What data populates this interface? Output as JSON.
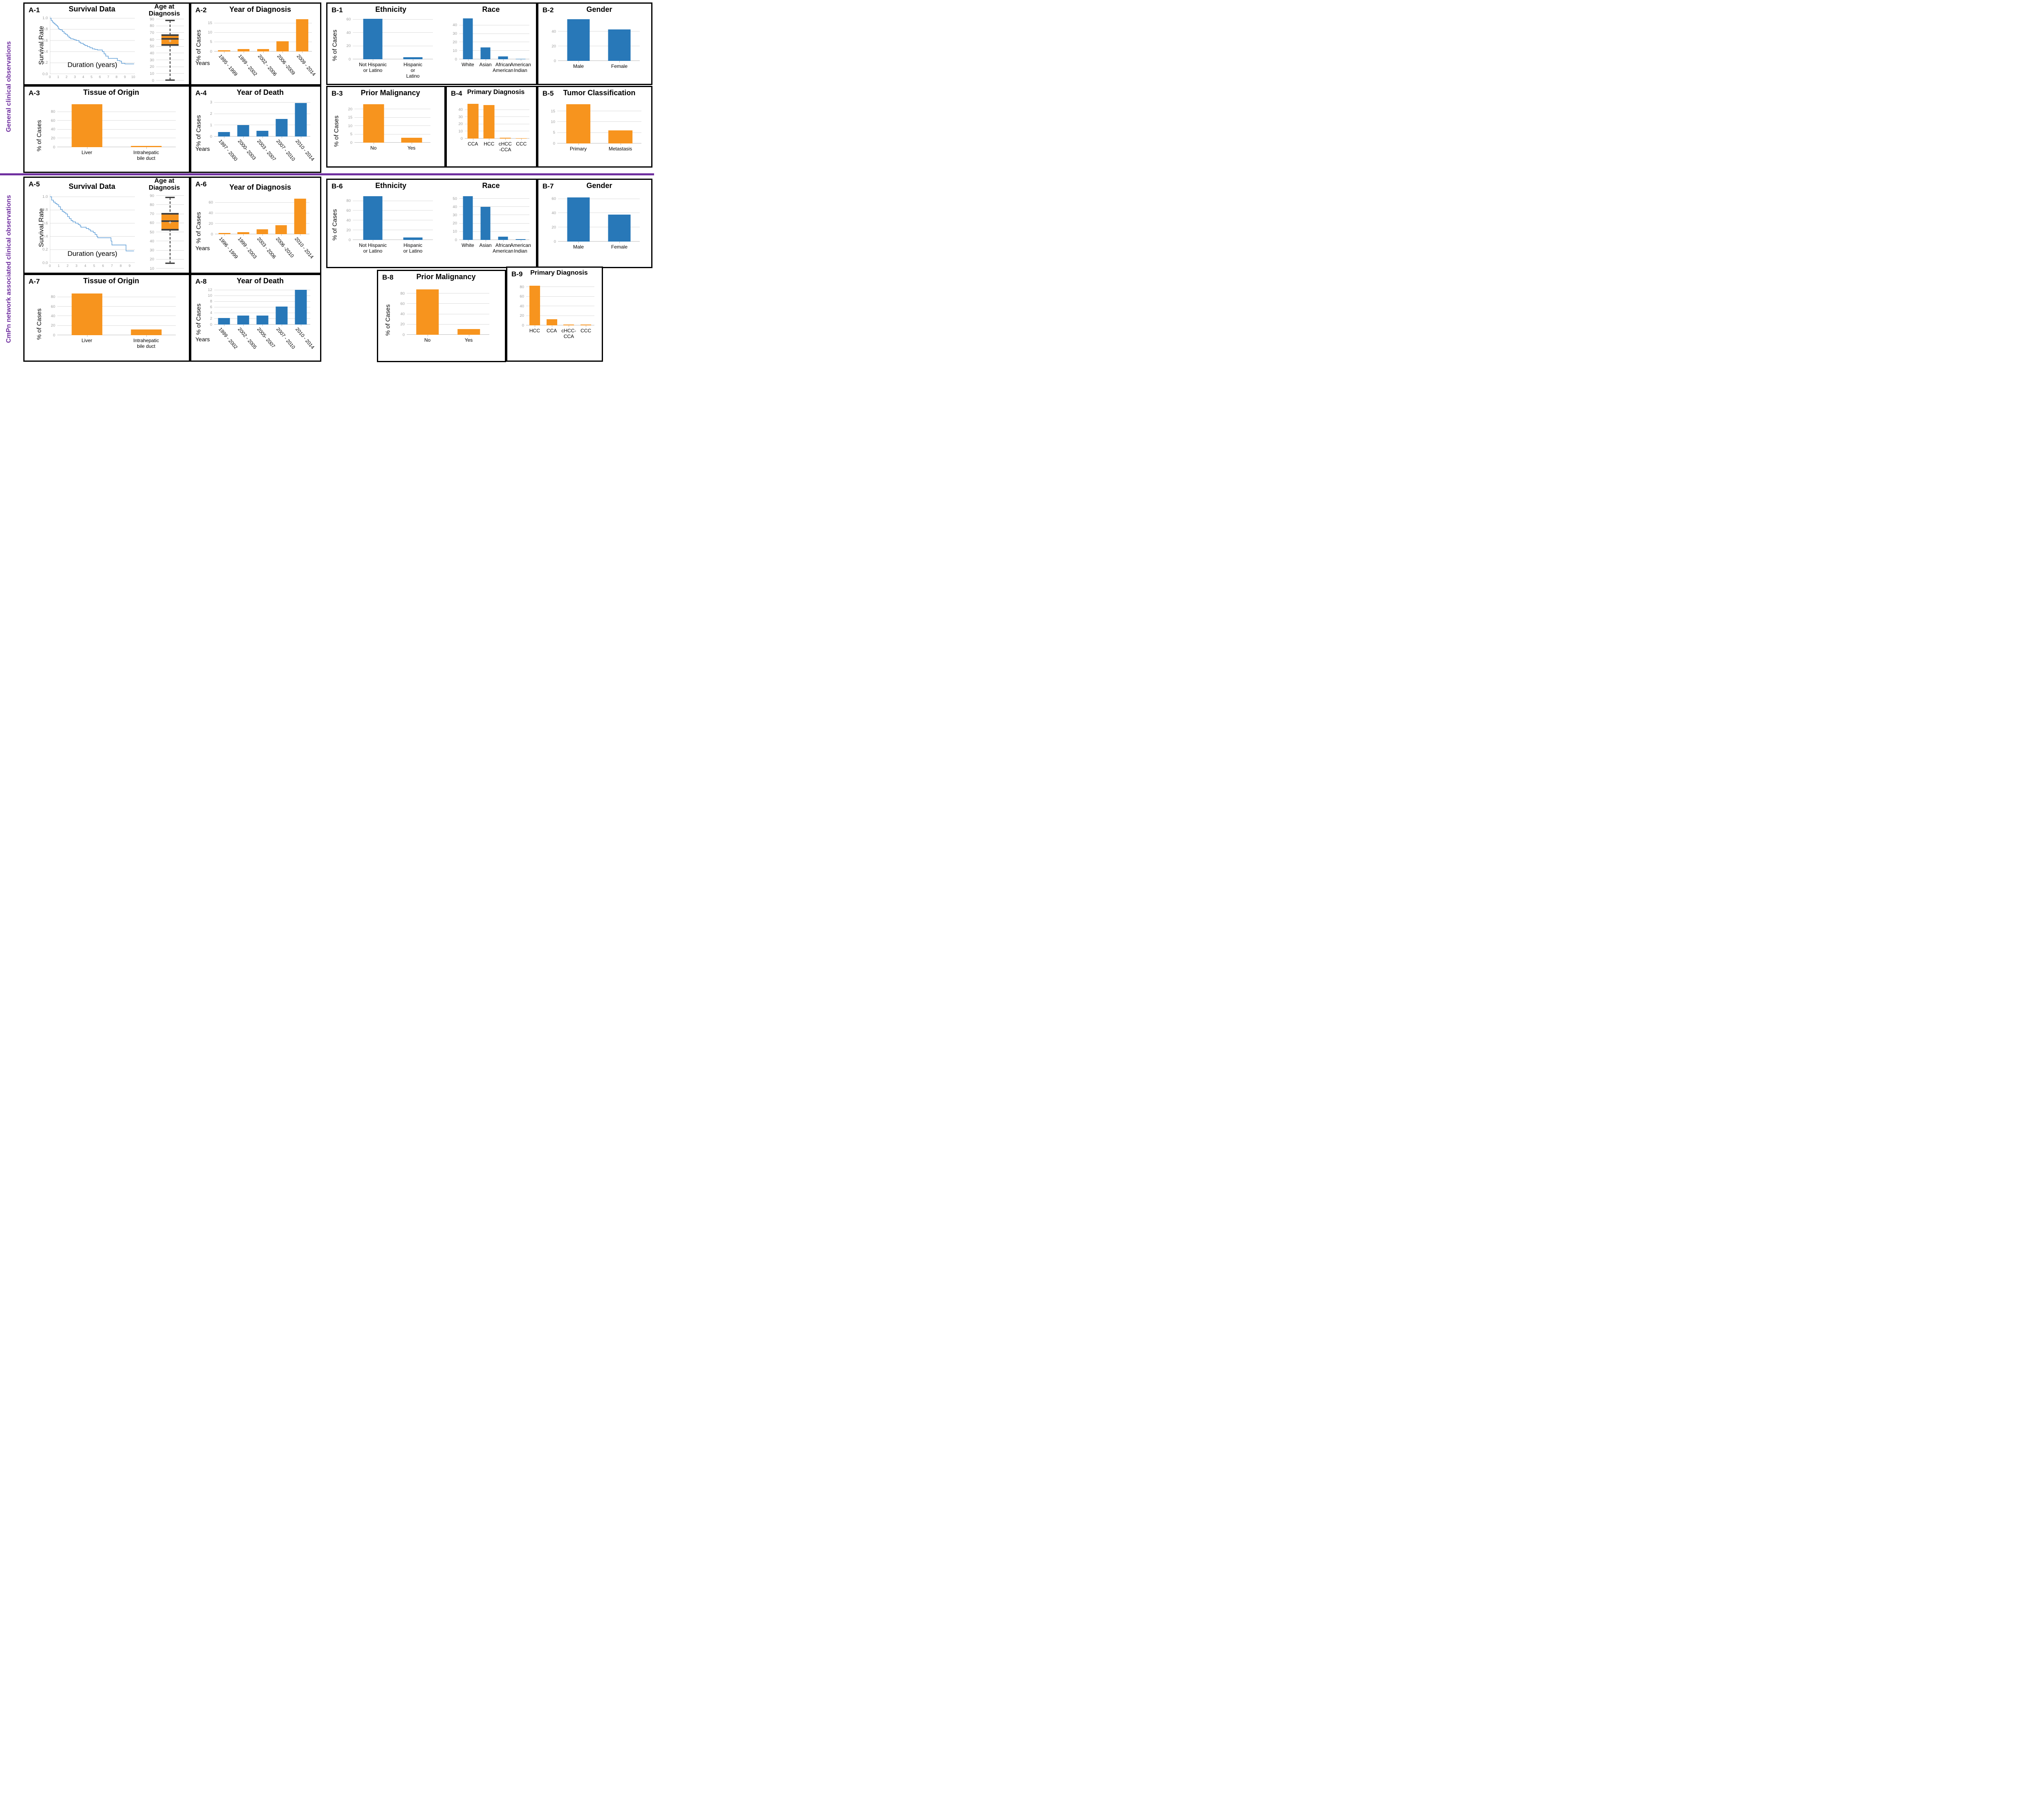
{
  "sections": {
    "top_label": "General clinical observations",
    "bottom_label": "CmPn network associated clinical observations"
  },
  "panels": {
    "a1": "A-1",
    "a2": "A-2",
    "a3": "A-3",
    "a4": "A-4",
    "a5": "A-5",
    "a6": "A-6",
    "a7": "A-7",
    "a8": "A-8",
    "b1": "B-1",
    "b2": "B-2",
    "b3": "B-3",
    "b4": "B-4",
    "b5": "B-5",
    "b6": "B-6",
    "b7": "B-7",
    "b8": "B-8",
    "b9": "B-9"
  },
  "colors": {
    "orange": "#F7941E",
    "blue": "#2878B8",
    "light_blue": "#5B9BD5",
    "purple": "#7030A0",
    "grid": "#DCDCDC",
    "tick": "#9C9C9C"
  },
  "chart_data": [
    {
      "id": "a1_survival",
      "type": "line",
      "title": "Survival Data",
      "ylabel": "Survival Rate",
      "xlabel": "Duration (years)",
      "color": "light_blue",
      "ylim": [
        0,
        1.04
      ],
      "yticks": [
        0.0,
        0.2,
        0.4,
        0.6,
        0.8,
        1.0
      ],
      "ytick_decimals": 1,
      "xlim": [
        0,
        10.2
      ],
      "xticks": [
        0,
        1,
        2,
        3,
        4,
        5,
        6,
        7,
        8,
        9,
        10
      ],
      "points": [
        [
          0,
          1.0
        ],
        [
          0.15,
          0.96
        ],
        [
          0.3,
          0.93
        ],
        [
          0.45,
          0.91
        ],
        [
          0.6,
          0.89
        ],
        [
          0.75,
          0.87
        ],
        [
          0.9,
          0.85
        ],
        [
          1.0,
          0.82
        ],
        [
          1.1,
          0.8
        ],
        [
          1.3,
          0.79
        ],
        [
          1.5,
          0.76
        ],
        [
          1.7,
          0.73
        ],
        [
          1.9,
          0.71
        ],
        [
          2.1,
          0.68
        ],
        [
          2.3,
          0.65
        ],
        [
          2.5,
          0.63
        ],
        [
          2.8,
          0.62
        ],
        [
          3.0,
          0.61
        ],
        [
          3.2,
          0.6
        ],
        [
          3.5,
          0.57
        ],
        [
          3.7,
          0.55
        ],
        [
          4.0,
          0.53
        ],
        [
          4.2,
          0.51
        ],
        [
          4.5,
          0.49
        ],
        [
          4.8,
          0.47
        ],
        [
          5.1,
          0.45
        ],
        [
          5.4,
          0.44
        ],
        [
          5.7,
          0.43
        ],
        [
          6.1,
          0.43
        ],
        [
          6.3,
          0.4
        ],
        [
          6.5,
          0.36
        ],
        [
          6.7,
          0.32
        ],
        [
          7.0,
          0.28
        ],
        [
          7.9,
          0.28
        ],
        [
          8.1,
          0.24
        ],
        [
          8.4,
          0.23
        ],
        [
          8.6,
          0.19
        ],
        [
          9.0,
          0.18
        ],
        [
          10.1,
          0.18
        ]
      ]
    },
    {
      "id": "a1_age",
      "type": "box",
      "title": "Age at\nDiagnosis",
      "color": "orange",
      "ymin": 0,
      "ymax": 90,
      "yticks": [
        0,
        10,
        20,
        30,
        40,
        50,
        60,
        70,
        80,
        90
      ],
      "stats": {
        "min": 0.5,
        "q1": 51,
        "median": 61,
        "mean": 58,
        "q3": 68,
        "max": 88
      }
    },
    {
      "id": "a2",
      "type": "bar",
      "title": "Year of Diagnosis",
      "ylabel": "% of Cases",
      "xlabel": "Years",
      "color": "orange",
      "rotate": true,
      "barw": 62,
      "categories": [
        "1995 - 1999",
        "1999 - 2002",
        "2002 - 2006",
        "2006 -2009",
        "2009 - 2014"
      ],
      "values": [
        0.6,
        1.2,
        1.4,
        5.4,
        17.2
      ],
      "yticks": [
        0,
        5,
        10,
        15
      ],
      "ylim": [
        0,
        18
      ]
    },
    {
      "id": "a3",
      "type": "bar",
      "title": "Tissue of Origin",
      "ylabel": "% of Cases",
      "color": "orange",
      "barw": 52,
      "categories": [
        "Liver",
        "Intrahepatic bile duct"
      ],
      "values": [
        97,
        3
      ],
      "yticks": [
        0,
        20,
        40,
        60,
        80
      ],
      "ylim": [
        0,
        100
      ]
    },
    {
      "id": "a4",
      "type": "bar",
      "title": "Year of Death",
      "ylabel": "% of Cases",
      "xlabel": "Years",
      "color": "blue",
      "rotate": true,
      "barw": 62,
      "categories": [
        "1997 - 2000",
        "2000- 2003",
        "2003 - 2007",
        "2007 - 2010",
        "2010 - 2014"
      ],
      "values": [
        0.4,
        1.0,
        0.5,
        1.55,
        2.95
      ],
      "yticks": [
        0,
        1,
        2,
        3
      ],
      "ylim": [
        0,
        3.1
      ]
    },
    {
      "id": "b1_eth",
      "type": "bar",
      "title": "Ethnicity",
      "ylabel": "% of Cases",
      "color": "blue",
      "barw": 48,
      "categories": [
        "Not Hispanic\nor Latino",
        "Hispanic or\nLatino"
      ],
      "values": [
        61,
        3
      ],
      "yticks": [
        0,
        20,
        40,
        60
      ],
      "ylim": [
        0,
        63
      ]
    },
    {
      "id": "b1_race",
      "type": "bar",
      "title": "Race",
      "color": "blue",
      "barw": 58,
      "categories": [
        "White",
        "Asian",
        "African\nAmerican",
        "American\nIndian"
      ],
      "values": [
        48,
        14,
        3.5,
        0.5
      ],
      "yticks": [
        0,
        10,
        20,
        30,
        40
      ],
      "ylim": [
        0,
        49
      ]
    },
    {
      "id": "b2",
      "type": "bar",
      "title": "Gender",
      "color": "blue",
      "barw": 55,
      "categories": [
        "Male",
        "Female"
      ],
      "values": [
        57,
        43
      ],
      "yticks": [
        0,
        20,
        40
      ],
      "ylim": [
        0,
        58
      ]
    },
    {
      "id": "b3",
      "type": "bar",
      "title": "Prior Malignancy",
      "ylabel": "% of Cases",
      "color": "orange",
      "barw": 55,
      "categories": [
        "No",
        "Yes"
      ],
      "values": [
        23,
        3
      ],
      "yticks": [
        0,
        5,
        10,
        15,
        20
      ],
      "ylim": [
        0,
        24
      ]
    },
    {
      "id": "b4",
      "type": "bar",
      "title": "Primary Diagnosis",
      "color": "orange",
      "barw": 68,
      "categories": [
        "CCA",
        "HCC",
        "cHCC\n-CCA",
        "CCC"
      ],
      "values": [
        48.5,
        46.5,
        1.2,
        0.5
      ],
      "yticks": [
        0,
        10,
        20,
        30,
        40
      ],
      "ylim": [
        0,
        50
      ]
    },
    {
      "id": "b5",
      "type": "bar",
      "title": "Tumor Classification",
      "color": "orange",
      "barw": 58,
      "categories": [
        "Primary",
        "Metastasis"
      ],
      "values": [
        18.2,
        6
      ],
      "yticks": [
        0,
        5,
        10,
        15
      ],
      "ylim": [
        0,
        19
      ]
    },
    {
      "id": "a5_survival",
      "type": "line",
      "title": "Survival Data",
      "ylabel": "Survival Rate",
      "xlabel": "Duration (years)",
      "color": "light_blue",
      "ylim": [
        0,
        1.04
      ],
      "yticks": [
        0.0,
        0.2,
        0.4,
        0.6,
        0.8,
        1.0
      ],
      "ytick_decimals": 1,
      "xlim": [
        0,
        9.6
      ],
      "xticks": [
        0,
        1,
        2,
        3,
        4,
        5,
        6,
        7,
        8,
        9
      ],
      "points": [
        [
          0,
          1.0
        ],
        [
          0.2,
          0.95
        ],
        [
          0.4,
          0.92
        ],
        [
          0.6,
          0.9
        ],
        [
          0.8,
          0.88
        ],
        [
          1.0,
          0.85
        ],
        [
          1.2,
          0.81
        ],
        [
          1.4,
          0.78
        ],
        [
          1.6,
          0.76
        ],
        [
          1.8,
          0.74
        ],
        [
          2.0,
          0.7
        ],
        [
          2.2,
          0.67
        ],
        [
          2.4,
          0.64
        ],
        [
          2.6,
          0.62
        ],
        [
          2.9,
          0.6
        ],
        [
          3.2,
          0.58
        ],
        [
          3.4,
          0.56
        ],
        [
          3.5,
          0.54
        ],
        [
          3.9,
          0.54
        ],
        [
          4.1,
          0.52
        ],
        [
          4.4,
          0.5
        ],
        [
          4.6,
          0.48
        ],
        [
          4.9,
          0.46
        ],
        [
          5.1,
          0.43
        ],
        [
          5.3,
          0.4
        ],
        [
          5.4,
          0.38
        ],
        [
          6.8,
          0.38
        ],
        [
          6.9,
          0.33
        ],
        [
          7.0,
          0.27
        ],
        [
          8.5,
          0.27
        ],
        [
          8.6,
          0.18
        ],
        [
          9.5,
          0.18
        ]
      ]
    },
    {
      "id": "a5_age",
      "type": "box",
      "title": "Age at\nDiagnosis",
      "color": "orange",
      "ymin": 10,
      "ymax": 90,
      "yticks": [
        10,
        20,
        30,
        40,
        50,
        60,
        70,
        80,
        90
      ],
      "stats": {
        "min": 16,
        "q1": 52,
        "median": 62,
        "mean": 61,
        "q3": 71,
        "max": 88
      }
    },
    {
      "id": "a6",
      "type": "bar",
      "title": "Year of Diagnosis",
      "ylabel": "% of Cases",
      "xlabel": "Years",
      "color": "orange",
      "rotate": true,
      "barw": 62,
      "categories": [
        "1996 - 1999",
        "1999 - 2003",
        "2003 - 2006",
        "2006 -2010",
        "2010 - 2014"
      ],
      "values": [
        2.5,
        4,
        9,
        17,
        68
      ],
      "yticks": [
        0,
        20,
        40,
        60
      ],
      "ylim": [
        0,
        70
      ]
    },
    {
      "id": "a7",
      "type": "bar",
      "title": "Tissue of Origin",
      "ylabel": "% of Cases",
      "color": "orange",
      "barw": 52,
      "categories": [
        "Liver",
        "Intrahepatic  bile duct"
      ],
      "values": [
        88,
        12
      ],
      "yticks": [
        0,
        20,
        40,
        60,
        80
      ],
      "ylim": [
        0,
        92
      ]
    },
    {
      "id": "a8",
      "type": "bar",
      "title": "Year of Death",
      "ylabel": "% of Cases",
      "xlabel": "Years",
      "color": "blue",
      "rotate": true,
      "barw": 62,
      "categories": [
        "1999 - 2002",
        "2002 - 2005",
        "2005- 2007",
        "2007 - 2010",
        "2010 - 2014"
      ],
      "values": [
        2.25,
        3.15,
        3.15,
        6.3,
        12.1
      ],
      "yticks": [
        0,
        2,
        4,
        6,
        8,
        10,
        12
      ],
      "ylim": [
        0,
        12.4
      ]
    },
    {
      "id": "b6_eth",
      "type": "bar",
      "title": "Ethnicity",
      "ylabel": "% of Cases",
      "color": "blue",
      "barw": 48,
      "categories": [
        "Not Hispanic\nor Latino",
        "Hispanic\nor Latino"
      ],
      "values": [
        90,
        5
      ],
      "yticks": [
        0,
        20,
        40,
        60,
        80
      ],
      "ylim": [
        0,
        93
      ]
    },
    {
      "id": "b6_race",
      "type": "bar",
      "title": "Race",
      "color": "blue",
      "barw": 58,
      "categories": [
        "White",
        "Asian",
        "African\nAmerican",
        "American\nIndian"
      ],
      "values": [
        53,
        40,
        4,
        0.8
      ],
      "yticks": [
        0,
        10,
        20,
        30,
        40,
        50
      ],
      "ylim": [
        0,
        55
      ]
    },
    {
      "id": "b7",
      "type": "bar",
      "title": "Gender",
      "color": "blue",
      "barw": 55,
      "categories": [
        "Male",
        "Female"
      ],
      "values": [
        62,
        38
      ],
      "yticks": [
        0,
        20,
        40,
        60
      ],
      "ylim": [
        0,
        65
      ]
    },
    {
      "id": "b8",
      "type": "bar",
      "title": "Prior Malignancy",
      "ylabel": "% of Cases",
      "color": "orange",
      "barw": 55,
      "categories": [
        "No",
        "Yes"
      ],
      "values": [
        88,
        11
      ],
      "yticks": [
        0,
        20,
        40,
        60,
        80
      ],
      "ylim": [
        0,
        92
      ]
    },
    {
      "id": "b9",
      "type": "bar",
      "title": "Primary Diagnosis",
      "color": "orange",
      "barw": 62,
      "categories": [
        "HCC",
        "CCA",
        "cHCC-\nCCA",
        "CCC"
      ],
      "values": [
        83,
        12.5,
        2,
        2
      ],
      "yticks": [
        0,
        20,
        40,
        60,
        80
      ],
      "ylim": [
        0,
        86
      ]
    }
  ]
}
